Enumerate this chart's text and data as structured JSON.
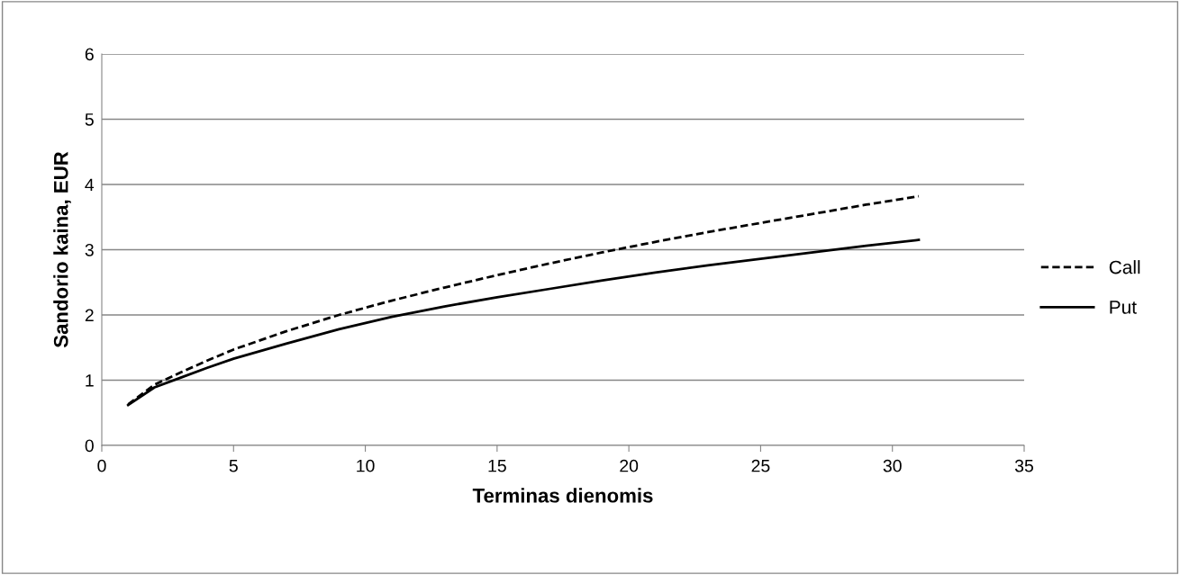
{
  "chart_data": {
    "type": "line",
    "xlabel": "Terminas dienomis",
    "ylabel": "Sandorio kaina, EUR",
    "x": [
      1,
      2,
      3,
      4,
      5,
      7,
      9,
      11,
      13,
      15,
      17,
      19,
      21,
      23,
      25,
      27,
      29,
      31
    ],
    "series": [
      {
        "name": "Call",
        "color": "#000000",
        "line_style": "dashed",
        "values": [
          0.63,
          0.93,
          1.12,
          1.3,
          1.47,
          1.75,
          2.0,
          2.22,
          2.42,
          2.61,
          2.79,
          2.96,
          3.12,
          3.27,
          3.41,
          3.55,
          3.69,
          3.82
        ]
      },
      {
        "name": "Put",
        "color": "#000000",
        "line_style": "solid",
        "values": [
          0.62,
          0.89,
          1.04,
          1.19,
          1.33,
          1.56,
          1.78,
          1.97,
          2.13,
          2.27,
          2.4,
          2.53,
          2.65,
          2.76,
          2.86,
          2.96,
          3.06,
          3.15
        ]
      }
    ],
    "xlim": [
      0,
      35
    ],
    "xticks": [
      0,
      5,
      10,
      15,
      20,
      25,
      30,
      35
    ],
    "ylim": [
      0,
      6
    ],
    "yticks": [
      0,
      1,
      2,
      3,
      4,
      5,
      6
    ],
    "grid": "y",
    "legend": "right",
    "marker": "none"
  }
}
